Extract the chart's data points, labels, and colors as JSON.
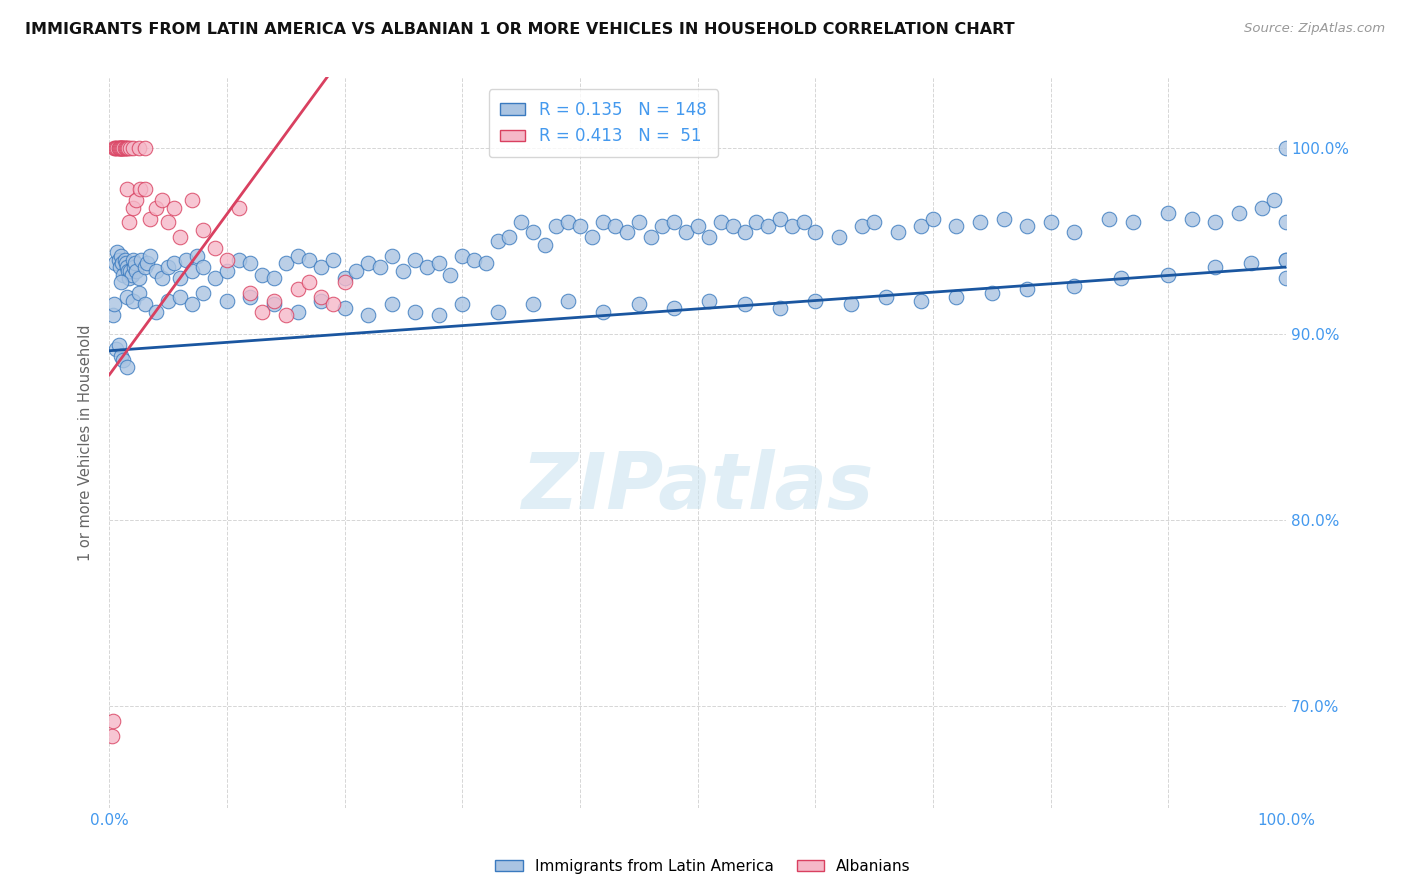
{
  "title": "IMMIGRANTS FROM LATIN AMERICA VS ALBANIAN 1 OR MORE VEHICLES IN HOUSEHOLD CORRELATION CHART",
  "source": "Source: ZipAtlas.com",
  "ylabel": "1 or more Vehicles in Household",
  "ytick_labels": [
    "70.0%",
    "80.0%",
    "90.0%",
    "100.0%"
  ],
  "ytick_values": [
    0.7,
    0.8,
    0.9,
    1.0
  ],
  "legend_blue_r": "R = 0.135",
  "legend_blue_n": "N = 148",
  "legend_pink_r": "R = 0.413",
  "legend_pink_n": "N =  51",
  "blue_color": "#aac4e2",
  "blue_edge_color": "#3a7abf",
  "pink_color": "#f5b8c8",
  "pink_edge_color": "#d94060",
  "blue_line_color": "#1a56a0",
  "pink_line_color": "#d94060",
  "watermark": "ZIPatlas",
  "blue_scatter_x": [
    0.5,
    0.7,
    0.8,
    0.9,
    1.0,
    1.1,
    1.2,
    1.3,
    1.4,
    1.5,
    1.6,
    1.7,
    1.8,
    1.9,
    2.0,
    2.1,
    2.2,
    2.3,
    2.5,
    2.7,
    3.0,
    3.2,
    3.5,
    4.0,
    4.5,
    5.0,
    5.5,
    6.0,
    6.5,
    7.0,
    7.5,
    8.0,
    9.0,
    10.0,
    11.0,
    12.0,
    13.0,
    14.0,
    15.0,
    16.0,
    17.0,
    18.0,
    19.0,
    20.0,
    21.0,
    22.0,
    23.0,
    24.0,
    25.0,
    26.0,
    27.0,
    28.0,
    29.0,
    30.0,
    31.0,
    32.0,
    33.0,
    34.0,
    35.0,
    36.0,
    37.0,
    38.0,
    39.0,
    40.0,
    41.0,
    42.0,
    43.0,
    44.0,
    45.0,
    46.0,
    47.0,
    48.0,
    49.0,
    50.0,
    51.0,
    52.0,
    53.0,
    54.0,
    55.0,
    56.0,
    57.0,
    58.0,
    59.0,
    60.0,
    62.0,
    64.0,
    65.0,
    67.0,
    69.0,
    70.0,
    72.0,
    74.0,
    76.0,
    78.0,
    80.0,
    82.0,
    85.0,
    87.0,
    90.0,
    92.0,
    94.0,
    96.0,
    98.0,
    99.0,
    100.0,
    100.0,
    100.0,
    100.0,
    0.3,
    0.4,
    1.0,
    1.5,
    2.0,
    2.5,
    3.0,
    4.0,
    5.0,
    6.0,
    7.0,
    8.0,
    10.0,
    12.0,
    14.0,
    16.0,
    18.0,
    20.0,
    22.0,
    24.0,
    26.0,
    28.0,
    30.0,
    33.0,
    36.0,
    39.0,
    42.0,
    45.0,
    48.0,
    51.0,
    54.0,
    57.0,
    60.0,
    63.0,
    66.0,
    69.0,
    72.0,
    75.0,
    78.0,
    82.0,
    86.0,
    90.0,
    94.0,
    97.0,
    100.0,
    0.6,
    0.8,
    1.0,
    1.2,
    1.5
  ],
  "blue_scatter_y": [
    0.938,
    0.944,
    0.94,
    0.936,
    0.942,
    0.938,
    0.932,
    0.94,
    0.938,
    0.936,
    0.934,
    0.93,
    0.934,
    0.932,
    0.94,
    0.936,
    0.938,
    0.934,
    0.93,
    0.94,
    0.936,
    0.938,
    0.942,
    0.934,
    0.93,
    0.936,
    0.938,
    0.93,
    0.94,
    0.934,
    0.942,
    0.936,
    0.93,
    0.934,
    0.94,
    0.938,
    0.932,
    0.93,
    0.938,
    0.942,
    0.94,
    0.936,
    0.94,
    0.93,
    0.934,
    0.938,
    0.936,
    0.942,
    0.934,
    0.94,
    0.936,
    0.938,
    0.932,
    0.942,
    0.94,
    0.938,
    0.95,
    0.952,
    0.96,
    0.955,
    0.948,
    0.958,
    0.96,
    0.958,
    0.952,
    0.96,
    0.958,
    0.955,
    0.96,
    0.952,
    0.958,
    0.96,
    0.955,
    0.958,
    0.952,
    0.96,
    0.958,
    0.955,
    0.96,
    0.958,
    0.962,
    0.958,
    0.96,
    0.955,
    0.952,
    0.958,
    0.96,
    0.955,
    0.958,
    0.962,
    0.958,
    0.96,
    0.962,
    0.958,
    0.96,
    0.955,
    0.962,
    0.96,
    0.965,
    0.962,
    0.96,
    0.965,
    0.968,
    0.972,
    1.0,
    0.96,
    0.94,
    0.93,
    0.91,
    0.916,
    0.928,
    0.92,
    0.918,
    0.922,
    0.916,
    0.912,
    0.918,
    0.92,
    0.916,
    0.922,
    0.918,
    0.92,
    0.916,
    0.912,
    0.918,
    0.914,
    0.91,
    0.916,
    0.912,
    0.91,
    0.916,
    0.912,
    0.916,
    0.918,
    0.912,
    0.916,
    0.914,
    0.918,
    0.916,
    0.914,
    0.918,
    0.916,
    0.92,
    0.918,
    0.92,
    0.922,
    0.924,
    0.926,
    0.93,
    0.932,
    0.936,
    0.938,
    0.94,
    0.892,
    0.894,
    0.888,
    0.886,
    0.882
  ],
  "pink_scatter_x": [
    0.2,
    0.3,
    0.4,
    0.5,
    0.6,
    0.7,
    0.8,
    0.9,
    1.0,
    1.1,
    1.2,
    1.3,
    1.5,
    1.7,
    2.0,
    2.3,
    2.6,
    3.0,
    3.5,
    4.0,
    4.5,
    5.0,
    5.5,
    6.0,
    7.0,
    8.0,
    9.0,
    10.0,
    11.0,
    12.0,
    13.0,
    14.0,
    15.0,
    16.0,
    17.0,
    18.0,
    19.0,
    20.0,
    0.8,
    0.9,
    1.0,
    1.1,
    1.2,
    1.3,
    1.4,
    1.5,
    1.6,
    1.8,
    2.0,
    2.5,
    3.0
  ],
  "pink_scatter_y": [
    0.684,
    0.692,
    1.0,
    1.0,
    1.0,
    1.0,
    1.0,
    1.0,
    1.0,
    1.0,
    1.0,
    1.0,
    0.978,
    0.96,
    0.968,
    0.972,
    0.978,
    0.978,
    0.962,
    0.968,
    0.972,
    0.96,
    0.968,
    0.952,
    0.972,
    0.956,
    0.946,
    0.94,
    0.968,
    0.922,
    0.912,
    0.918,
    0.91,
    0.924,
    0.928,
    0.92,
    0.916,
    0.928,
    1.0,
    1.0,
    1.0,
    1.0,
    1.0,
    1.0,
    1.0,
    1.0,
    1.0,
    1.0,
    1.0,
    1.0,
    1.0
  ],
  "xmin": 0.0,
  "xmax": 100.0,
  "ymin": 0.645,
  "ymax": 1.038,
  "blue_trend_x0": 0.0,
  "blue_trend_y0": 0.891,
  "blue_trend_x1": 100.0,
  "blue_trend_y1": 0.936,
  "pink_trend_x0": 0.0,
  "pink_trend_y0": 0.878,
  "pink_trend_x1": 18.5,
  "pink_trend_y1": 1.038
}
